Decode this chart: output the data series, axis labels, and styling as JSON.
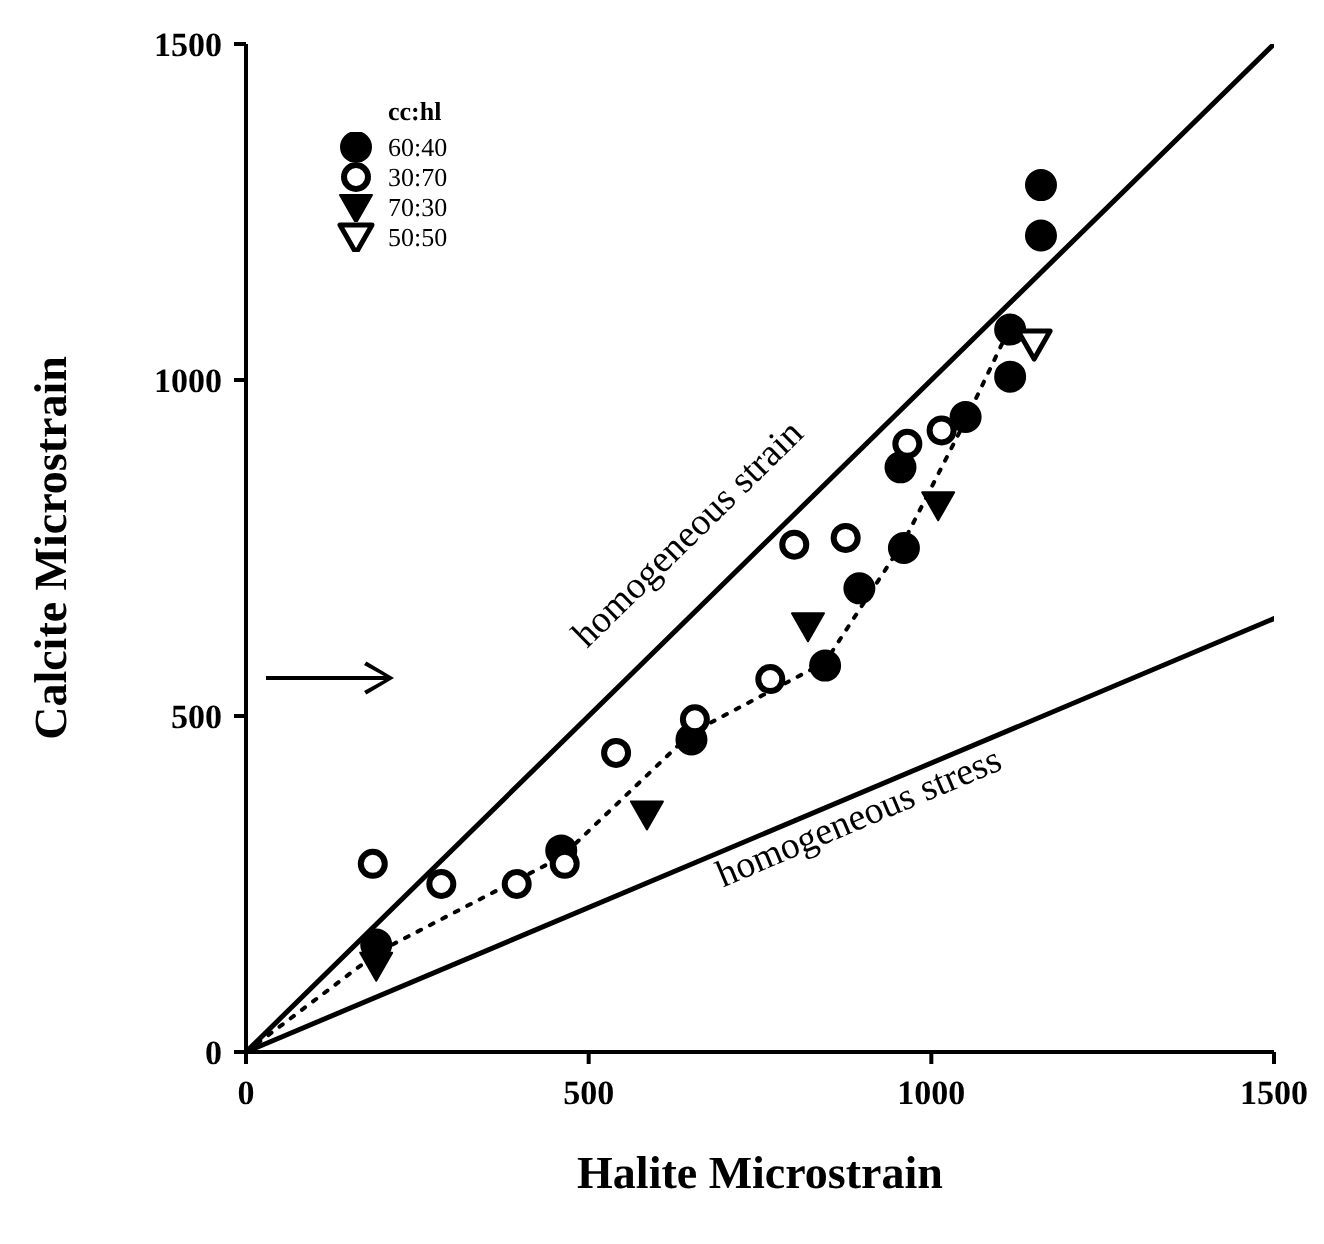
{
  "chart_data": {
    "type": "scatter",
    "xlabel": "Halite Microstrain",
    "ylabel": "Calcite Microstrain",
    "legend_title": "cc:hl",
    "legend": "top left",
    "grid": false,
    "xlim": [
      0,
      1500
    ],
    "ylim": [
      0,
      1500
    ],
    "xticks": [
      0,
      500,
      1000,
      1500
    ],
    "yticks": [
      0,
      500,
      1000,
      1500
    ],
    "annotations": [
      "homogeneous strain",
      "homogeneous stress"
    ],
    "series": [
      {
        "name": "60:40",
        "marker": "circle",
        "color": "#000000",
        "x": [
          190,
          460,
          650,
          845,
          895,
          960,
          955,
          1050,
          1115,
          1115,
          1160,
          1160
        ],
        "values": [
          160,
          300,
          465,
          575,
          690,
          750,
          870,
          945,
          1005,
          1075,
          1215,
          1290
        ]
      },
      {
        "name": "30:70",
        "marker": "circle",
        "color": "#ffffff",
        "x": [
          185,
          285,
          395,
          465,
          540,
          655,
          765,
          800,
          875,
          965,
          1015
        ],
        "values": [
          280,
          250,
          250,
          280,
          445,
          495,
          555,
          755,
          765,
          905,
          925
        ]
      },
      {
        "name": "70:30",
        "marker": "triangle",
        "color": "#000000",
        "x": [
          190,
          585,
          820,
          1010
        ],
        "values": [
          130,
          355,
          635,
          815
        ]
      },
      {
        "name": "50:50",
        "marker": "triangle",
        "color": "#ffffff",
        "x": [
          1150
        ],
        "values": [
          1055
        ]
      },
      {
        "type": "line",
        "line_style": "solid",
        "color": "#000000",
        "x": [
          0,
          1500
        ],
        "values": [
          0,
          1500
        ]
      },
      {
        "type": "line",
        "line_style": "solid",
        "color": "#000000",
        "x": [
          0,
          1500
        ],
        "values": [
          0,
          645
        ]
      },
      {
        "type": "line",
        "line_style": "dotted",
        "color": "#000000",
        "x": [
          0,
          195,
          460,
          650,
          845,
          960,
          1050,
          1120
        ],
        "values": [
          0,
          150,
          290,
          475,
          580,
          760,
          940,
          1090
        ]
      }
    ]
  }
}
